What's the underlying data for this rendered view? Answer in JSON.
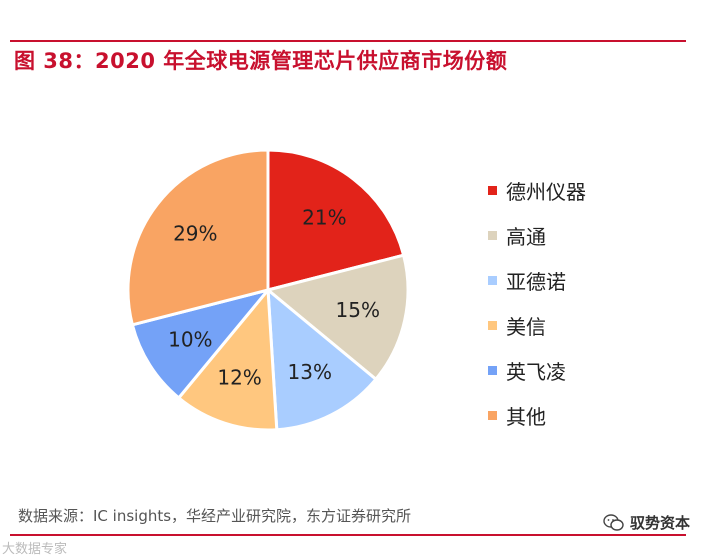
{
  "header": {
    "title": "图 38：2020 年全球电源管理芯片供应商市场份额"
  },
  "chart_data": {
    "type": "pie",
    "title": "图 38：2020 年全球电源管理芯片供应商市场份额",
    "slices": [
      {
        "label": "德州仪器",
        "value": 21,
        "value_label": "21%",
        "color": "#e2231a"
      },
      {
        "label": "高通",
        "value": 15,
        "value_label": "15%",
        "color": "#ddd3bd"
      },
      {
        "label": "亚德诺",
        "value": 13,
        "value_label": "13%",
        "color": "#a9cdff"
      },
      {
        "label": "美信",
        "value": 12,
        "value_label": "12%",
        "color": "#ffc77f"
      },
      {
        "label": "英飞凌",
        "value": 10,
        "value_label": "10%",
        "color": "#74a2f7"
      },
      {
        "label": "其他",
        "value": 29,
        "value_label": "29%",
        "color": "#f9a463"
      }
    ],
    "legend_position": "right"
  },
  "footer": {
    "source": "数据来源：IC insights，华经产业研究院，东方证券研究所",
    "watermark": "驭势资本",
    "corner_mark": "大数据专家"
  }
}
